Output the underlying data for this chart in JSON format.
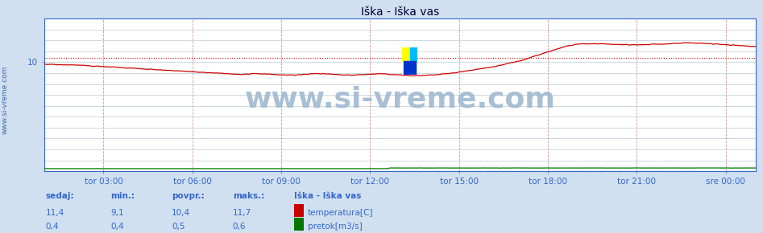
{
  "title": "Iška - Iška vas",
  "bg_color": "#d0e0f0",
  "plot_bg_color": "#ffffff",
  "grid_color": "#b8c8d8",
  "text_color": "#3366cc",
  "x_labels": [
    "tor 03:00",
    "tor 06:00",
    "tor 09:00",
    "tor 12:00",
    "tor 15:00",
    "tor 18:00",
    "tor 21:00",
    "sre 00:00"
  ],
  "y_tick_val": 10,
  "y_range": [
    0,
    14
  ],
  "avg_line_value": 10.4,
  "avg_line_color": "#cc0000",
  "temp_line_color": "#cc0000",
  "flow_color": "#007700",
  "flow_2_color": "#0000cc",
  "axis_color": "#3366cc",
  "border_color": "#3366cc",
  "watermark_text": "www.si-vreme.com",
  "watermark_color": "#a0b8d0",
  "watermark_fontsize": 26,
  "title_fontsize": 10,
  "tick_fontsize": 7.5,
  "legend_title": "Iška - Iška vas",
  "legend_items": [
    {
      "label": "temperatura[C]",
      "color": "#cc0000"
    },
    {
      "label": "pretok[m3/s]",
      "color": "#007700"
    }
  ],
  "footer_labels": [
    "sedaj:",
    "min.:",
    "povpr.:",
    "maks.:"
  ],
  "footer_temp": [
    "11,4",
    "9,1",
    "10,4",
    "11,7"
  ],
  "footer_flow": [
    "0,4",
    "0,4",
    "0,5",
    "0,6"
  ],
  "n_points": 289,
  "sidebar_text": "www.si-vreme.com",
  "sidebar_color": "#4466aa",
  "sidebar_fontsize": 6.5,
  "logo_colors": [
    "#ffff00",
    "#00aaff",
    "#0033cc"
  ],
  "vgrid_color": "#cc9999",
  "hgrid_color": "#aabbcc"
}
